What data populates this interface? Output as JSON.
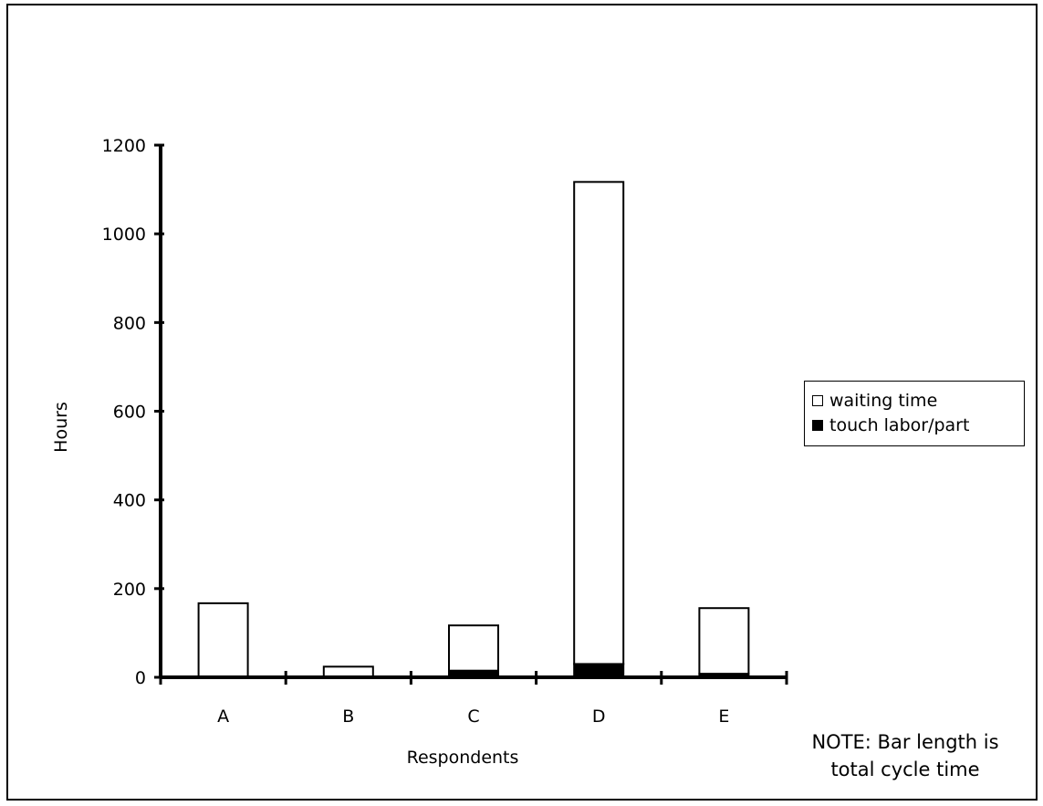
{
  "chart_data": {
    "type": "bar",
    "stacked": true,
    "categories": [
      "A",
      "B",
      "C",
      "D",
      "E"
    ],
    "series": [
      {
        "name": "touch labor/part",
        "values": [
          2,
          1,
          15,
          30,
          8
        ],
        "color": "#000000"
      },
      {
        "name": "waiting time",
        "values": [
          165,
          23,
          102,
          1087,
          148
        ],
        "color": "#ffffff"
      }
    ],
    "totals": [
      167,
      24,
      117,
      1117,
      156
    ],
    "xlabel": "Respondents",
    "ylabel": "Hours",
    "ylim": [
      0,
      1200
    ],
    "yticks": [
      "0",
      "200",
      "400",
      "600",
      "800",
      "1000",
      "1200"
    ],
    "legend_position": "right",
    "grid": false,
    "note": [
      "NOTE: Bar length is",
      "total cycle time"
    ]
  }
}
